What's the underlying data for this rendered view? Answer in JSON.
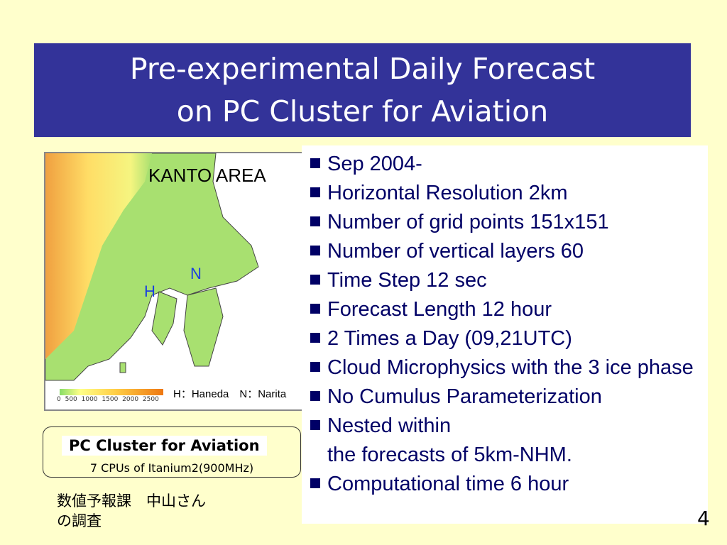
{
  "slide": {
    "title_line1": "Pre-experimental Daily Forecast",
    "title_line2": "on PC Cluster for Aviation",
    "page_number": "4",
    "title_bg": "#333399",
    "background": "#ffffcc"
  },
  "map": {
    "title": "KANTO AREA",
    "marker_haneda": "H",
    "marker_narita": "N",
    "legend_ticks": "0 500 1000 1500 2000 2500",
    "legend_key": "H：Haneda　N：Narita"
  },
  "bullets": [
    "Sep 2004-",
    "Horizontal Resolution 2km",
    "Number of grid points 151x151",
    "Number of vertical layers 60",
    "Time Step 12 sec",
    "Forecast Length 12 hour",
    "2 Times a Day (09,21UTC)",
    "Cloud Microphysics with the 3 ice phase",
    "No Cumulus Parameterization",
    "Nested within\nthe forecasts of 5km-NHM.",
    "Computational time 6 hour"
  ],
  "cluster": {
    "name": "PC Cluster for Aviation",
    "spec": "7 CPUs of Itanium2(900MHz)"
  },
  "note": {
    "line1": "数値予報課　中山さん",
    "line2": "の調査"
  }
}
